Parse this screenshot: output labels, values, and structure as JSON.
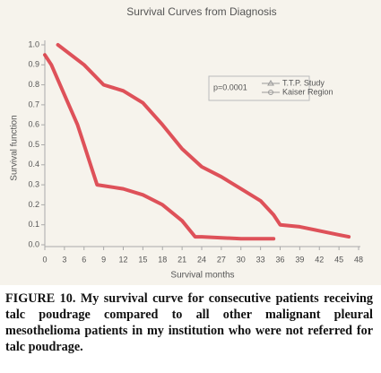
{
  "chart_data": {
    "type": "line",
    "title": "Survival Curves from Diagnosis",
    "xlabel": "Survival months",
    "ylabel": "Survival function",
    "annotation": "p=0.0001",
    "legend": "upper right",
    "xlim": [
      0,
      48
    ],
    "ylim": [
      0,
      1
    ],
    "xticks": [
      0,
      3,
      6,
      9,
      12,
      15,
      18,
      21,
      24,
      27,
      30,
      33,
      36,
      39,
      42,
      45,
      48
    ],
    "yticks": [
      {
        "value": 0,
        "label": "0.0"
      },
      0.1,
      0.2,
      0.3,
      0.4,
      0.5,
      0.6,
      0.7,
      0.8,
      0.9,
      {
        "value": 1,
        "label": "1.0"
      }
    ],
    "series": [
      {
        "name": "T.T.P. Study",
        "color": "#d9343f",
        "x": [
          2,
          6,
          9,
          12,
          15,
          18,
          21,
          24,
          27,
          30,
          33,
          35,
          36,
          39,
          42,
          45,
          46.5
        ],
        "values": [
          1.0,
          0.9,
          0.8,
          0.77,
          0.71,
          0.6,
          0.48,
          0.39,
          0.34,
          0.28,
          0.22,
          0.15,
          0.1,
          0.09,
          0.07,
          0.05,
          0.04
        ]
      },
      {
        "name": "Kaiser Region",
        "color": "#d9343f",
        "x": [
          0,
          1,
          3,
          5,
          6,
          7,
          8,
          12,
          15,
          18,
          21,
          23,
          24,
          30,
          35
        ],
        "values": [
          0.95,
          0.9,
          0.75,
          0.6,
          0.5,
          0.4,
          0.3,
          0.28,
          0.25,
          0.2,
          0.12,
          0.04,
          0.04,
          0.03,
          0.03
        ]
      }
    ]
  },
  "caption": {
    "label": "FIGURE 10.",
    "text": "My survival curve for consecutive patients receiving talc poudrage compared to all other malignant pleural mesothelioma patients in my institution who were not referred for talc poudrage."
  }
}
